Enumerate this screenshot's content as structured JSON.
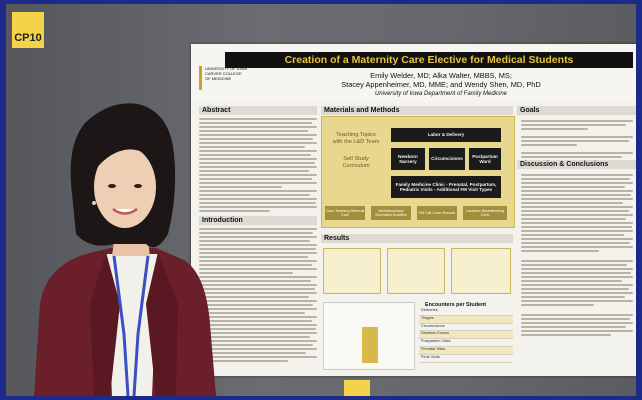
{
  "scene": {
    "background": "#5c5e63",
    "frame_color": "#1d2a8a"
  },
  "tags": {
    "left_label": "CP10",
    "right_label": ""
  },
  "poster": {
    "title": "Creation of a Maternity Care Elective for Medical Students",
    "authors_line1": "Emily Welder, MD; Alka Walter, MBBS, MS;",
    "authors_line2": "Stacey Appenheimer, MD, MME; and Wendy Shen, MD, PhD",
    "department": "University of Iowa Department of Family Medicine",
    "logo": [
      "UNIVERSITY OF IOWA",
      "CARVER COLLEGE",
      "OF MEDICINE"
    ],
    "sections": {
      "abstract": "Abstract",
      "introduction": "Introduction",
      "materials_methods": "Materials and Methods",
      "results": "Results",
      "goals": "Goals",
      "discussion": "Discussion & Conclusions"
    },
    "diagram": {
      "topics": "Teaching Topics with the L&D Team",
      "self_study": "Self Study Curriculum",
      "labor": "Labor & Delivery",
      "newborn": "Newborn Nursery",
      "circumcisions": "Circumcisions",
      "postpartum": "Postpartum Ward",
      "fm_clinic": "Family Medicine Clinic - Prenatal, Postpartum, Pediatric Visits - Additional FM Visit Types",
      "chips": [
        "Case Teaching Maternal Care",
        "Multidisciplinary Simulation Activities",
        "FM Call Cover Rounds",
        "Lactation Breastfeeding Clinic"
      ]
    },
    "encounters_title": "Encounters per Student",
    "encounters_rows": [
      "Deliveries",
      "Triages",
      "Circumcisions",
      "Newborn Exams",
      "Postpartum Visits",
      "Prenatal Visits",
      "Peds Visits"
    ]
  }
}
